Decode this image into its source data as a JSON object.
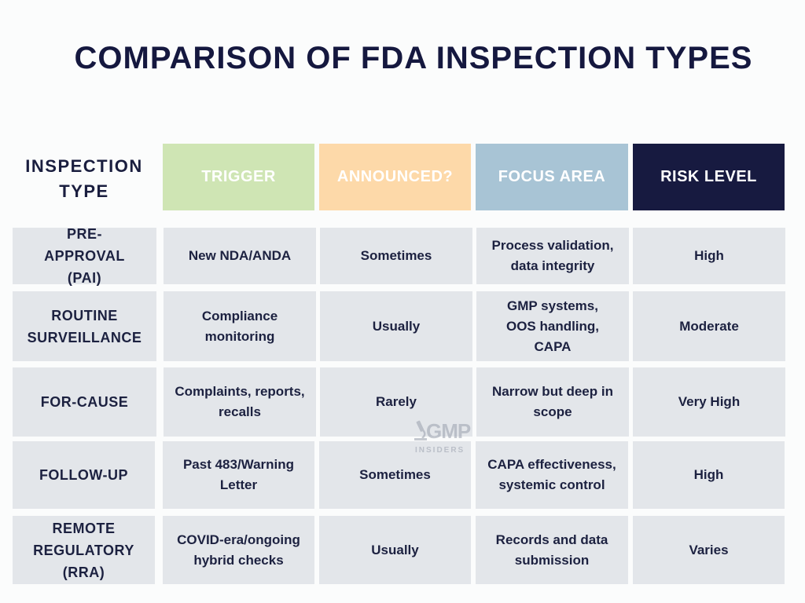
{
  "title": "COMPARISON OF FDA INSPECTION TYPES",
  "header": {
    "type_label": "INSPECTION TYPE",
    "columns": [
      {
        "label": "TRIGGER",
        "color": "#cfe5b4"
      },
      {
        "label": "ANNOUNCED?",
        "color": "#fdd9a9"
      },
      {
        "label": "FOCUS AREA",
        "color": "#a8c4d5"
      },
      {
        "label": "RISK LEVEL",
        "color": "#171a40"
      }
    ]
  },
  "rows": [
    {
      "type": "PRE-APPROVAL (PAI)",
      "trigger": "New NDA/ANDA",
      "announced": "Sometimes",
      "focus": "Process validation, data integrity",
      "risk": "High"
    },
    {
      "type": "ROUTINE SURVEILLANCE",
      "trigger": "Compliance monitoring",
      "announced": "Usually",
      "focus": "GMP systems, OOS handling, CAPA",
      "risk": "Moderate"
    },
    {
      "type": "FOR-CAUSE",
      "trigger": "Complaints, reports, recalls",
      "announced": "Rarely",
      "focus": "Narrow but deep in scope",
      "risk": "Very High"
    },
    {
      "type": "FOLLOW-UP",
      "trigger": "Past 483/Warning Letter",
      "announced": "Sometimes",
      "focus": "CAPA effectiveness, systemic control",
      "risk": "High"
    },
    {
      "type": "REMOTE REGULATORY (RRA)",
      "trigger": "COVID-era/ongoing hybrid checks",
      "announced": "Usually",
      "focus": "Records and data submission",
      "risk": "Varies"
    }
  ],
  "watermark": {
    "mark": "GMP",
    "sub": "INSIDERS"
  }
}
